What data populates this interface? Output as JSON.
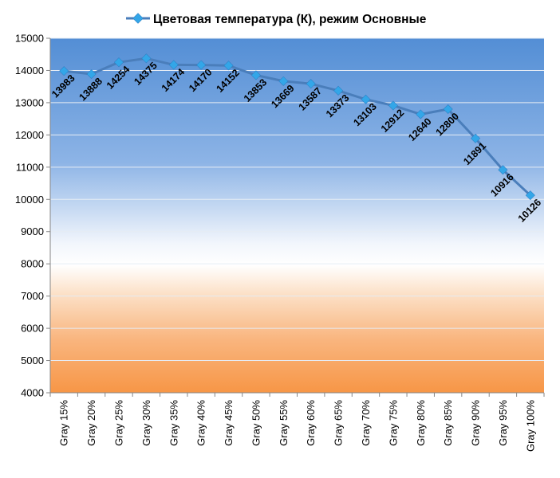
{
  "chart_data": {
    "type": "line",
    "title": "",
    "xlabel": "",
    "ylabel": "",
    "ylim": [
      4000,
      15000
    ],
    "y_ticks": [
      4000,
      5000,
      6000,
      7000,
      8000,
      9000,
      10000,
      11000,
      12000,
      13000,
      14000,
      15000
    ],
    "grid": "horizontal",
    "legend_position": "top",
    "categories": [
      "Gray 15%",
      "Gray 20%",
      "Gray 25%",
      "Gray 30%",
      "Gray 35%",
      "Gray 40%",
      "Gray 45%",
      "Gray 50%",
      "Gray 55%",
      "Gray 60%",
      "Gray 65%",
      "Gray 70%",
      "Gray 75%",
      "Gray 80%",
      "Gray 85%",
      "Gray 90%",
      "Gray 95%",
      "Gray 100%"
    ],
    "series": [
      {
        "name": "Цветовая температура (К), режим Основные",
        "color": "#4A7EBB",
        "marker_color": "#33A6E8",
        "values": [
          13983,
          13888,
          14254,
          14375,
          14174,
          14170,
          14152,
          13853,
          13669,
          13587,
          13373,
          13103,
          12912,
          12640,
          12800,
          11891,
          10916,
          10126
        ]
      }
    ],
    "background_gradient": [
      "#538ED5",
      "#A9C8EE",
      "#FFFFFF",
      "#FAC396",
      "#F79646"
    ]
  }
}
